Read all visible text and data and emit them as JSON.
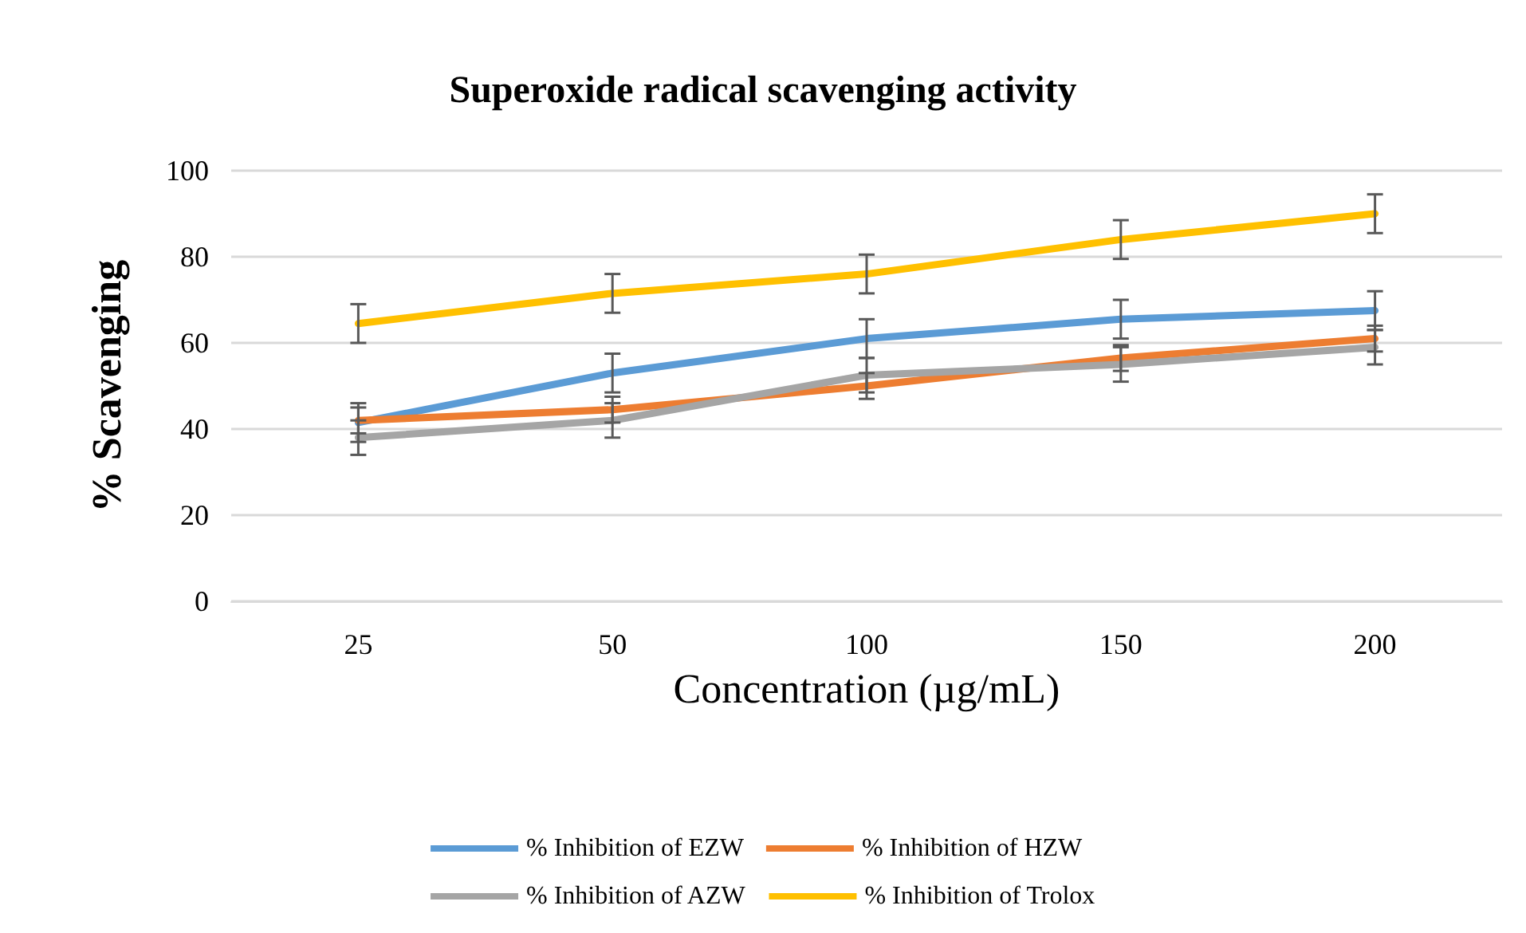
{
  "chart_data": {
    "type": "line",
    "title": "Superoxide radical scavenging activity",
    "xlabel": "Concentration (µg/mL)",
    "ylabel": "% Scavenging",
    "categories": [
      "25",
      "50",
      "100",
      "150",
      "200"
    ],
    "series": [
      {
        "name": "% Inhibition of EZW",
        "color": "#5b9bd5",
        "values": [
          41.5,
          53,
          61,
          65.5,
          67.5
        ],
        "errors": [
          4.5,
          4.5,
          4.5,
          4.5,
          4.5
        ]
      },
      {
        "name": "% Inhibition of HZW",
        "color": "#ed7d31",
        "values": [
          42,
          44.5,
          50,
          56.5,
          61
        ],
        "errors": [
          3,
          3,
          3,
          3,
          3
        ]
      },
      {
        "name": "% Inhibition of AZW",
        "color": "#a5a5a5",
        "values": [
          38,
          42,
          52.5,
          55,
          59
        ],
        "errors": [
          4,
          4,
          4,
          4,
          4
        ]
      },
      {
        "name": "% Inhibition of Trolox",
        "color": "#ffc000",
        "values": [
          64.5,
          71.5,
          76,
          84,
          90
        ],
        "errors": [
          4.5,
          4.5,
          4.5,
          4.5,
          4.5
        ]
      }
    ],
    "ylim": [
      0,
      100
    ],
    "yticks": [
      0,
      20,
      40,
      60,
      80,
      100
    ],
    "grid": "y",
    "legend": "bottom",
    "marker": "none",
    "line_style": "solid"
  }
}
